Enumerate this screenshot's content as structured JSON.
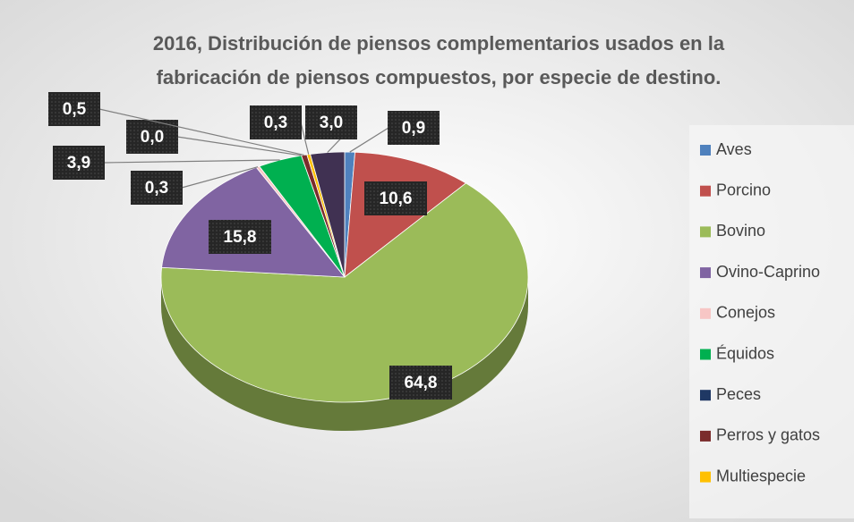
{
  "chart_data": {
    "type": "pie",
    "title": "2016, Distribución de piensos complementarios usados en la fabricación de piensos compuestos, por especie de destino.",
    "title_lines": [
      "2016, Distribución de piensos complementarios usados en la",
      "fabricación de piensos compuestos, por especie de destino."
    ],
    "categories": [
      "Aves",
      "Porcino",
      "Bovino",
      "Ovino-Caprino",
      "Conejos",
      "Équidos",
      "Peces",
      "Perros y gatos",
      "Multiespecie",
      null
    ],
    "values": [
      0.9,
      10.6,
      64.8,
      15.8,
      0.3,
      3.9,
      0.0,
      0.5,
      0.3,
      3.0
    ],
    "value_labels": [
      "0,9",
      "10,6",
      "64,8",
      "15,8",
      "0,3",
      "3,9",
      "0,0",
      "0,5",
      "0,3",
      "3,0"
    ],
    "colors": [
      "#4f81bd",
      "#c0504d",
      "#9bbb59",
      "#8064a2",
      "#f7c6c5",
      "#00b050",
      "#1f3864",
      "#7b2c2c",
      "#ffc000",
      "#403152"
    ],
    "legend": "right"
  }
}
